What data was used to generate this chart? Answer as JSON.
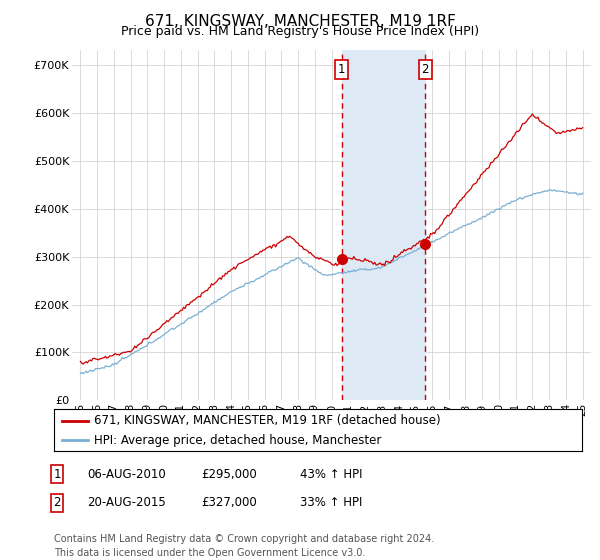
{
  "title": "671, KINGSWAY, MANCHESTER, M19 1RF",
  "subtitle": "Price paid vs. HM Land Registry's House Price Index (HPI)",
  "ylabel_ticks": [
    "£0",
    "£100K",
    "£200K",
    "£300K",
    "£400K",
    "£500K",
    "£600K",
    "£700K"
  ],
  "ytick_values": [
    0,
    100000,
    200000,
    300000,
    400000,
    500000,
    600000,
    700000
  ],
  "ylim": [
    0,
    730000
  ],
  "xlim_start": 1994.5,
  "xlim_end": 2025.5,
  "purchase1_x": 2010.6,
  "purchase1_y": 295000,
  "purchase2_x": 2015.6,
  "purchase2_y": 327000,
  "shade_x1": 2010.6,
  "shade_x2": 2015.6,
  "line1_color": "#cc0000",
  "line2_color": "#7ab0d4",
  "shade_color": "#ddeaf5",
  "dashed_color": "#cc0000",
  "grid_color": "#cccccc",
  "background_color": "#ffffff",
  "legend1_label": "671, KINGSWAY, MANCHESTER, M19 1RF (detached house)",
  "legend2_label": "HPI: Average price, detached house, Manchester",
  "table_row1": [
    "1",
    "06-AUG-2010",
    "£295,000",
    "43% ↑ HPI"
  ],
  "table_row2": [
    "2",
    "20-AUG-2015",
    "£327,000",
    "33% ↑ HPI"
  ],
  "footnote": "Contains HM Land Registry data © Crown copyright and database right 2024.\nThis data is licensed under the Open Government Licence v3.0.",
  "title_fontsize": 11,
  "subtitle_fontsize": 9,
  "tick_fontsize": 8,
  "legend_fontsize": 8.5,
  "table_fontsize": 8.5
}
